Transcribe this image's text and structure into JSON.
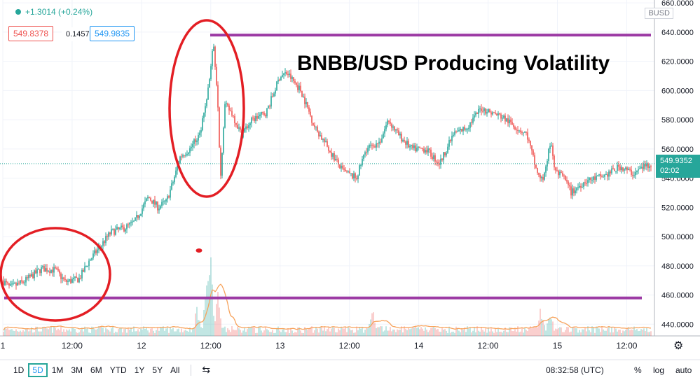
{
  "header": {
    "change": "+1.3014 (+0.24%)",
    "bid": "549.8378",
    "spread": "0.1457",
    "ask": "549.9835",
    "currency": "BUSD"
  },
  "annotation_title": "BNBB/USD Producing Volatility",
  "price_label": {
    "price": "549.9352",
    "countdown": "02:02"
  },
  "timeframes": {
    "items": [
      "1D",
      "5D",
      "1M",
      "3M",
      "6M",
      "YTD",
      "1Y",
      "5Y",
      "All"
    ],
    "selected": "5D"
  },
  "toolbar": {
    "time": "08:32:58 (UTC)",
    "percent": "%",
    "log": "log",
    "auto": "auto"
  },
  "colors": {
    "up": "#26a69a",
    "down": "#ef5350",
    "annotation_line": "#9c3aa4",
    "circle": "#e31e24",
    "volume_ma": "#f7a35c"
  },
  "chart_data": {
    "type": "candlestick",
    "title": "",
    "xlabel": "",
    "ylabel": "",
    "ylim": [
      432,
      662
    ],
    "y_ticks": [
      440,
      460,
      480,
      500,
      520,
      540,
      560,
      580,
      600,
      620,
      640,
      660
    ],
    "y_tick_labels": [
      "440.0000",
      "460.0000",
      "480.0000",
      "500.0000",
      "520.0000",
      "540.0000",
      "560.0000",
      "580.0000",
      "600.0000",
      "620.0000",
      "640.0000",
      "660.0000"
    ],
    "x_range": [
      0,
      4.7
    ],
    "x_ticks": [
      0,
      0.5,
      1,
      1.5,
      2,
      2.5,
      3,
      3.5,
      4,
      4.5
    ],
    "x_tick_labels": [
      "1",
      "12:00",
      "12",
      "12:00",
      "13",
      "12:00",
      "14",
      "12:00",
      "15",
      "12:00"
    ],
    "x_unit": "days",
    "price_path": [
      [
        0.0,
        470
      ],
      [
        0.05,
        465
      ],
      [
        0.15,
        469
      ],
      [
        0.28,
        478
      ],
      [
        0.38,
        477
      ],
      [
        0.45,
        469
      ],
      [
        0.55,
        471
      ],
      [
        0.62,
        483
      ],
      [
        0.7,
        493
      ],
      [
        0.78,
        503
      ],
      [
        0.88,
        506
      ],
      [
        0.95,
        510
      ],
      [
        1.05,
        527
      ],
      [
        1.12,
        520
      ],
      [
        1.18,
        524
      ],
      [
        1.23,
        538
      ],
      [
        1.28,
        555
      ],
      [
        1.35,
        560
      ],
      [
        1.42,
        570
      ],
      [
        1.48,
        600
      ],
      [
        1.52,
        632
      ],
      [
        1.55,
        595
      ],
      [
        1.57,
        540
      ],
      [
        1.6,
        590
      ],
      [
        1.65,
        585
      ],
      [
        1.72,
        570
      ],
      [
        1.8,
        580
      ],
      [
        1.9,
        585
      ],
      [
        2.0,
        610
      ],
      [
        2.05,
        612
      ],
      [
        2.15,
        600
      ],
      [
        2.25,
        575
      ],
      [
        2.35,
        560
      ],
      [
        2.45,
        545
      ],
      [
        2.55,
        540
      ],
      [
        2.62,
        560
      ],
      [
        2.72,
        565
      ],
      [
        2.78,
        580
      ],
      [
        2.85,
        570
      ],
      [
        2.95,
        560
      ],
      [
        3.05,
        560
      ],
      [
        3.15,
        550
      ],
      [
        3.25,
        570
      ],
      [
        3.35,
        575
      ],
      [
        3.45,
        588
      ],
      [
        3.52,
        585
      ],
      [
        3.6,
        582
      ],
      [
        3.7,
        575
      ],
      [
        3.78,
        570
      ],
      [
        3.85,
        545
      ],
      [
        3.9,
        540
      ],
      [
        3.95,
        565
      ],
      [
        3.98,
        545
      ],
      [
        4.05,
        540
      ],
      [
        4.1,
        530
      ],
      [
        4.2,
        538
      ],
      [
        4.35,
        542
      ],
      [
        4.45,
        548
      ],
      [
        4.55,
        543
      ],
      [
        4.62,
        548
      ],
      [
        4.68,
        550
      ]
    ],
    "volume_spikes": [
      [
        1.5,
        1.0
      ],
      [
        1.47,
        0.7
      ],
      [
        1.55,
        0.5
      ],
      [
        1.4,
        0.35
      ],
      [
        2.67,
        0.35
      ],
      [
        3.88,
        0.3
      ],
      [
        3.95,
        0.25
      ]
    ],
    "annotations": {
      "resistance_level": 638,
      "support_level": 458
    }
  }
}
